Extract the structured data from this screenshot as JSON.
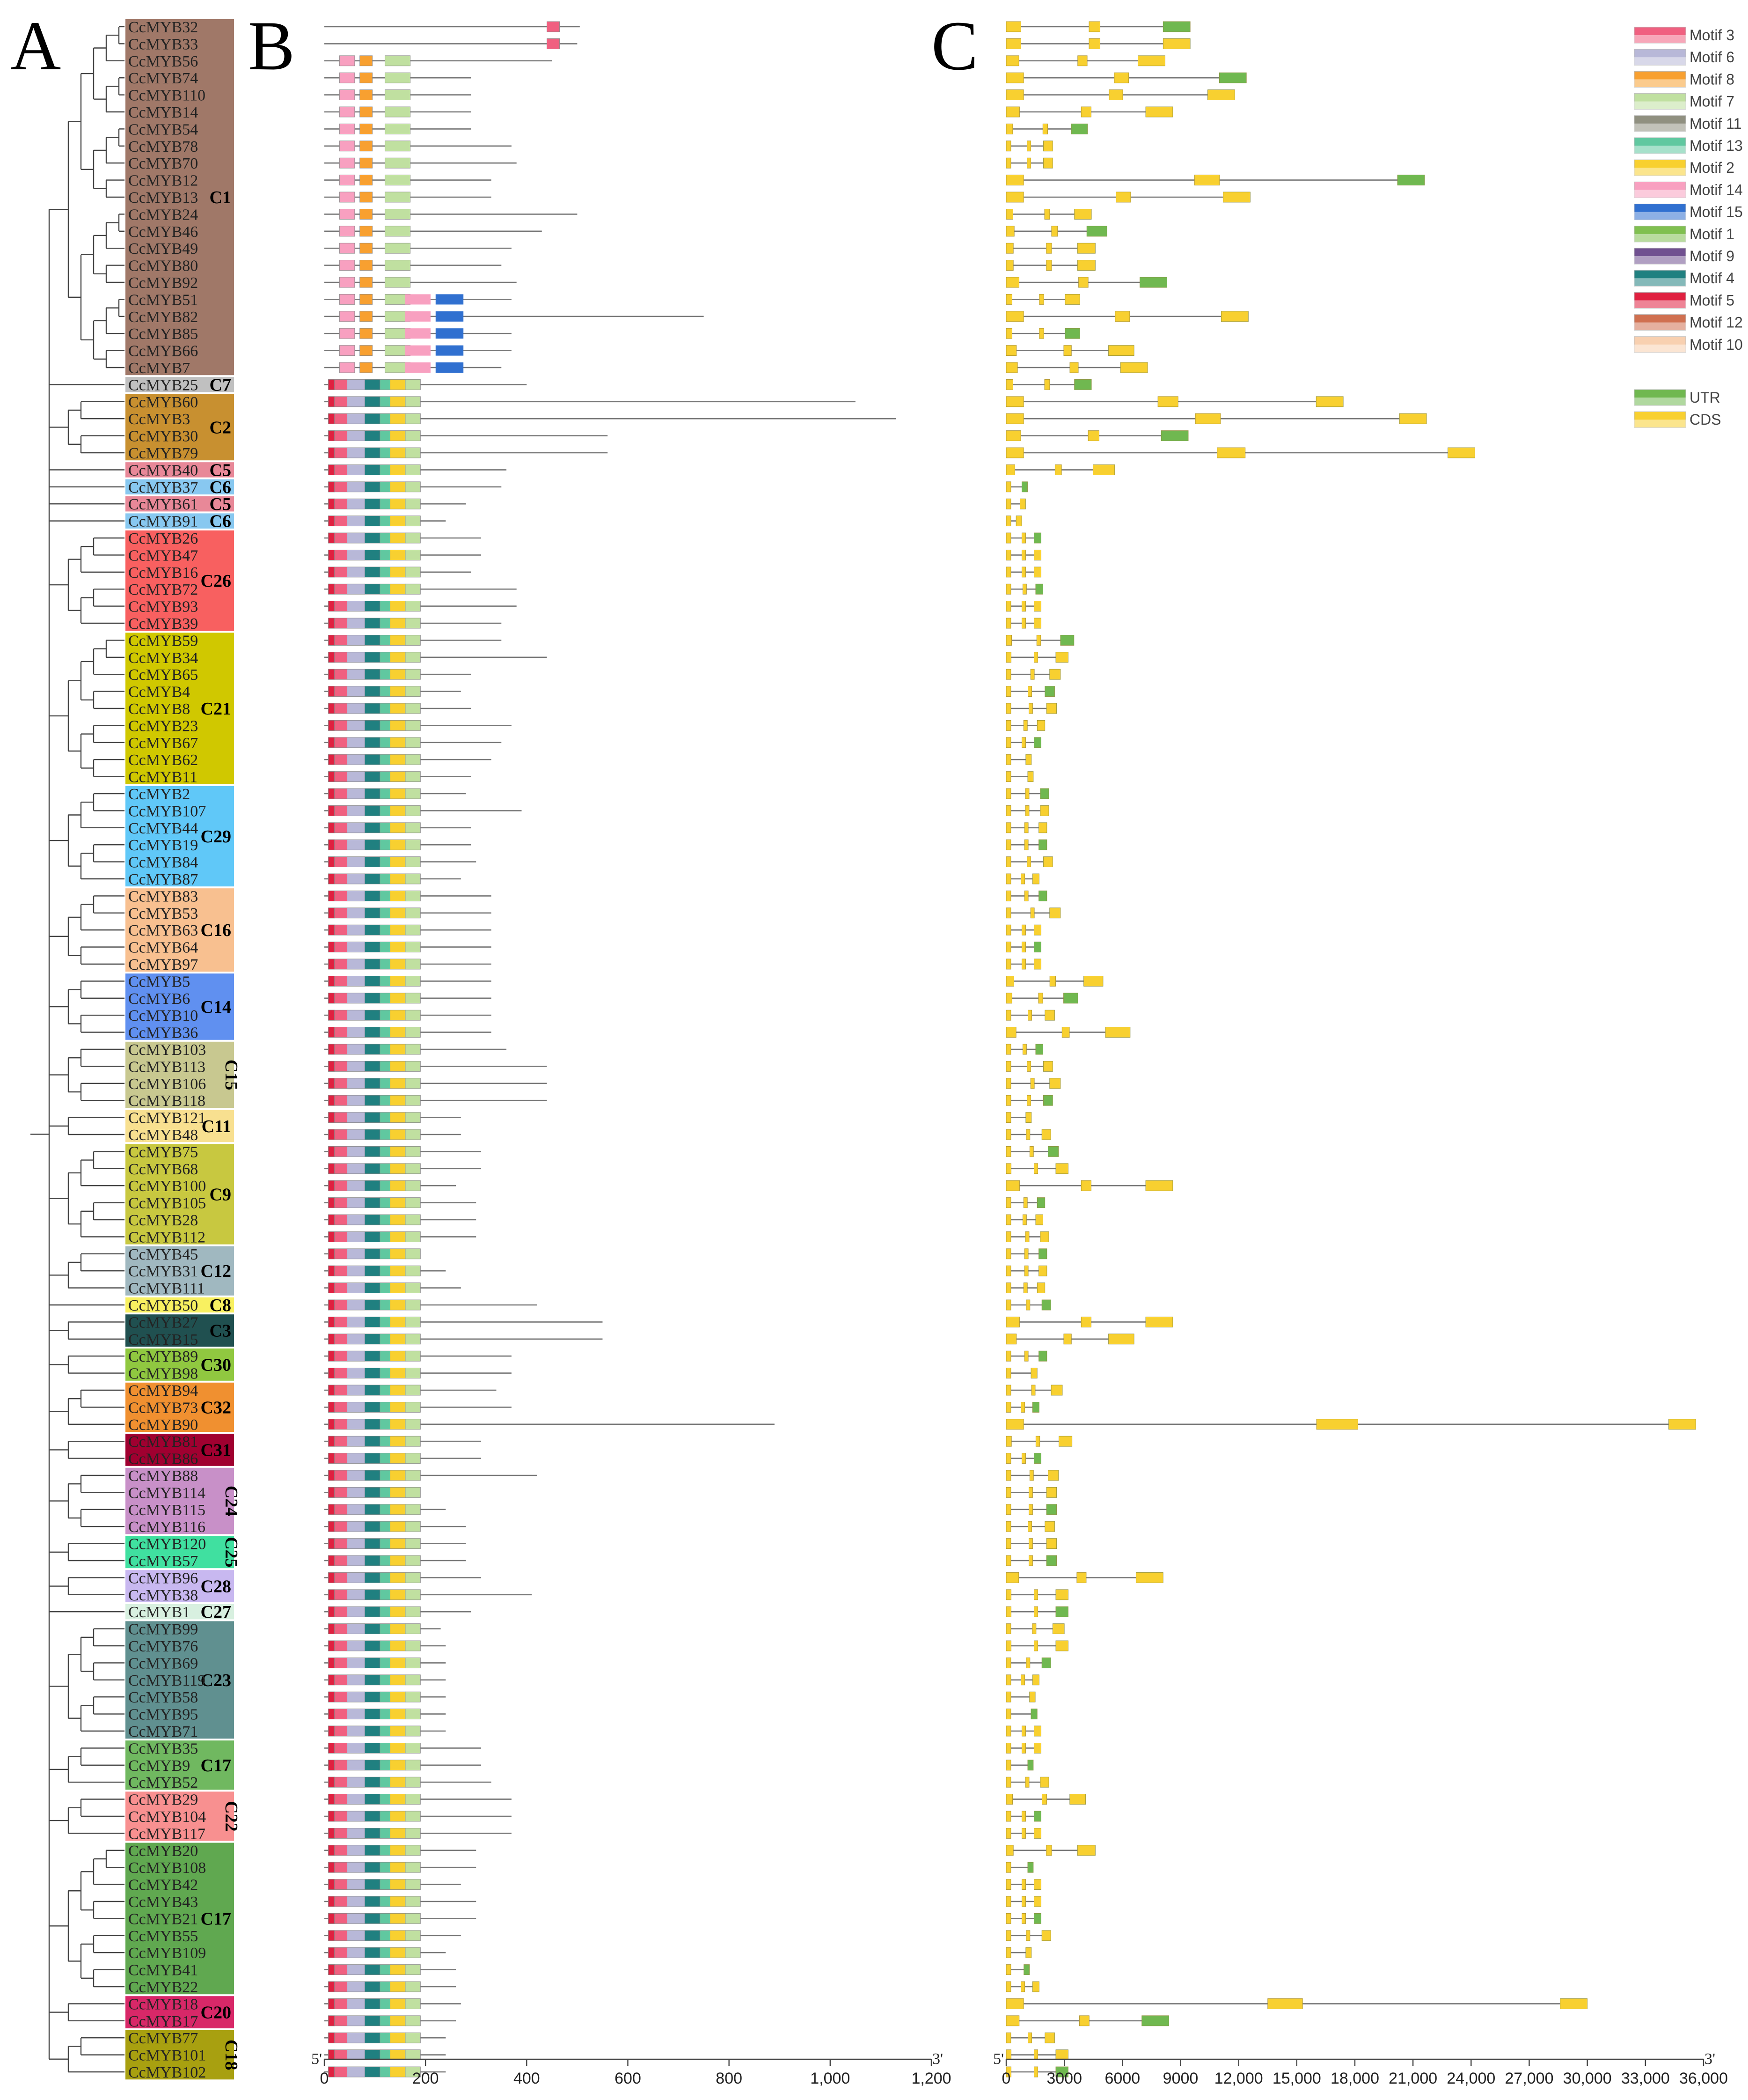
{
  "panels": {
    "a": "A",
    "b": "B",
    "c": "C"
  },
  "genes": [
    "CcMYB32",
    "CcMYB33",
    "CcMYB56",
    "CcMYB74",
    "CcMYB110",
    "CcMYB14",
    "CcMYB54",
    "CcMYB78",
    "CcMYB70",
    "CcMYB12",
    "CcMYB13",
    "CcMYB24",
    "CcMYB46",
    "CcMYB49",
    "CcMYB80",
    "CcMYB92",
    "CcMYB51",
    "CcMYB82",
    "CcMYB85",
    "CcMYB66",
    "CcMYB7",
    "CcMYB25",
    "CcMYB60",
    "CcMYB3",
    "CcMYB30",
    "CcMYB79",
    "CcMYB40",
    "CcMYB37",
    "CcMYB61",
    "CcMYB91",
    "CcMYB26",
    "CcMYB47",
    "CcMYB16",
    "CcMYB72",
    "CcMYB93",
    "CcMYB39",
    "CcMYB59",
    "CcMYB34",
    "CcMYB65",
    "CcMYB4",
    "CcMYB8",
    "CcMYB23",
    "CcMYB67",
    "CcMYB62",
    "CcMYB11",
    "CcMYB2",
    "CcMYB107",
    "CcMYB44",
    "CcMYB19",
    "CcMYB84",
    "CcMYB87",
    "CcMYB83",
    "CcMYB53",
    "CcMYB63",
    "CcMYB64",
    "CcMYB97",
    "CcMYB5",
    "CcMYB6",
    "CcMYB10",
    "CcMYB36",
    "CcMYB103",
    "CcMYB113",
    "CcMYB106",
    "CcMYB118",
    "CcMYB121",
    "CcMYB48",
    "CcMYB75",
    "CcMYB68",
    "CcMYB100",
    "CcMYB105",
    "CcMYB28",
    "CcMYB112",
    "CcMYB45",
    "CcMYB31",
    "CcMYB111",
    "CcMYB50",
    "CcMYB27",
    "CcMYB15",
    "CcMYB89",
    "CcMYB98",
    "CcMYB94",
    "CcMYB73",
    "CcMYB90",
    "CcMYB81",
    "CcMYB86",
    "CcMYB88",
    "CcMYB114",
    "CcMYB115",
    "CcMYB116",
    "CcMYB120",
    "CcMYB57",
    "CcMYB96",
    "CcMYB38",
    "CcMYB1",
    "CcMYB99",
    "CcMYB76",
    "CcMYB69",
    "CcMYB119",
    "CcMYB58",
    "CcMYB95",
    "CcMYB71",
    "CcMYB35",
    "CcMYB9",
    "CcMYB52",
    "CcMYB29",
    "CcMYB104",
    "CcMYB117",
    "CcMYB20",
    "CcMYB108",
    "CcMYB42",
    "CcMYB43",
    "CcMYB21",
    "CcMYB55",
    "CcMYB109",
    "CcMYB41",
    "CcMYB22",
    "CcMYB18",
    "CcMYB17",
    "CcMYB77",
    "CcMYB101",
    "CcMYB102"
  ],
  "clades": [
    {
      "label": "C1",
      "start": 0,
      "end": 20,
      "color": "#a07868",
      "vertical": false
    },
    {
      "label": "C7",
      "start": 21,
      "end": 21,
      "color": "#c0c0c0",
      "vertical": false
    },
    {
      "label": "C2",
      "start": 22,
      "end": 25,
      "color": "#c89030",
      "vertical": false
    },
    {
      "label": "C5",
      "start": 26,
      "end": 26,
      "color": "#e88898",
      "vertical": false
    },
    {
      "label": "C6",
      "start": 27,
      "end": 27,
      "color": "#88c8f0",
      "vertical": false
    },
    {
      "label": "C5",
      "start": 28,
      "end": 28,
      "color": "#e88898",
      "vertical": false
    },
    {
      "label": "C6",
      "start": 29,
      "end": 29,
      "color": "#88c8f0",
      "vertical": false
    },
    {
      "label": "C26",
      "start": 30,
      "end": 35,
      "color": "#f86060",
      "vertical": false
    },
    {
      "label": "C21",
      "start": 36,
      "end": 44,
      "color": "#d0c800",
      "vertical": false
    },
    {
      "label": "C29",
      "start": 45,
      "end": 50,
      "color": "#60c8f8",
      "vertical": false
    },
    {
      "label": "C16",
      "start": 51,
      "end": 55,
      "color": "#f8c090",
      "vertical": false
    },
    {
      "label": "C14",
      "start": 56,
      "end": 59,
      "color": "#6090f0",
      "vertical": false
    },
    {
      "label": "C15",
      "start": 60,
      "end": 63,
      "color": "#c8c890",
      "vertical": true
    },
    {
      "label": "C11",
      "start": 64,
      "end": 65,
      "color": "#f8e090",
      "vertical": false
    },
    {
      "label": "C9",
      "start": 66,
      "end": 71,
      "color": "#c8c840",
      "vertical": false
    },
    {
      "label": "C12",
      "start": 72,
      "end": 74,
      "color": "#a0b8c0",
      "vertical": false
    },
    {
      "label": "C8",
      "start": 75,
      "end": 75,
      "color": "#f8f060",
      "vertical": false
    },
    {
      "label": "C3",
      "start": 76,
      "end": 77,
      "color": "#205050",
      "vertical": false
    },
    {
      "label": "C30",
      "start": 78,
      "end": 79,
      "color": "#90c840",
      "vertical": false
    },
    {
      "label": "C32",
      "start": 80,
      "end": 82,
      "color": "#f09030",
      "vertical": false
    },
    {
      "label": "C31",
      "start": 83,
      "end": 84,
      "color": "#a00030",
      "vertical": false
    },
    {
      "label": "C24",
      "start": 85,
      "end": 88,
      "color": "#c890c8",
      "vertical": true
    },
    {
      "label": "C25",
      "start": 89,
      "end": 90,
      "color": "#40e0a0",
      "vertical": true
    },
    {
      "label": "C28",
      "start": 91,
      "end": 92,
      "color": "#c8b8f0",
      "vertical": false
    },
    {
      "label": "C27",
      "start": 93,
      "end": 93,
      "color": "#d8f0e0",
      "vertical": false
    },
    {
      "label": "C23",
      "start": 94,
      "end": 100,
      "color": "#609090",
      "vertical": false
    },
    {
      "label": "C17",
      "start": 101,
      "end": 103,
      "color": "#70b860",
      "vertical": false
    },
    {
      "label": "C22",
      "start": 104,
      "end": 106,
      "color": "#f89090",
      "vertical": true
    },
    {
      "label": "C17",
      "start": 107,
      "end": 115,
      "color": "#60a850",
      "vertical": false
    },
    {
      "label": "C20",
      "start": 116,
      "end": 117,
      "color": "#d82868",
      "vertical": false
    },
    {
      "label": "C18",
      "start": 118,
      "end": 120,
      "color": "#a8a010",
      "vertical": true
    }
  ],
  "panel_b": {
    "start_label": "5'",
    "end_label": "3'",
    "ticks": [
      "0",
      "200",
      "400",
      "600",
      "800",
      "1,000",
      "1,200"
    ],
    "max": 1200
  },
  "panel_c": {
    "start_label": "5'",
    "end_label": "3'",
    "ticks": [
      "0",
      "3000",
      "6000",
      "9000",
      "12,000",
      "15,000",
      "18,000",
      "21,000",
      "24,000",
      "27,000",
      "30,000",
      "33,000",
      "36,000"
    ],
    "max": 36000
  },
  "legend_motifs": [
    {
      "label": "Motif 3",
      "color": "#f06080"
    },
    {
      "label": "Motif 6",
      "color": "#b8b8d8"
    },
    {
      "label": "Motif 8",
      "color": "#f8a030"
    },
    {
      "label": "Motif 7",
      "color": "#c0e0a0"
    },
    {
      "label": "Motif 11",
      "color": "#909080"
    },
    {
      "label": "Motif 13",
      "color": "#60c8a0"
    },
    {
      "label": "Motif 2",
      "color": "#f8d030"
    },
    {
      "label": "Motif 14",
      "color": "#f8a0c0"
    },
    {
      "label": "Motif 15",
      "color": "#3070d0"
    },
    {
      "label": "Motif 1",
      "color": "#80c050"
    },
    {
      "label": "Motif 9",
      "color": "#705090"
    },
    {
      "label": "Motif 4",
      "color": "#208080"
    },
    {
      "label": "Motif 5",
      "color": "#e02040"
    },
    {
      "label": "Motif 12",
      "color": "#d07050"
    },
    {
      "label": "Motif 10",
      "color": "#f8d0b0"
    }
  ],
  "legend_structure": [
    {
      "label": "UTR",
      "color": "#70b850"
    },
    {
      "label": "CDS",
      "color": "#f8d030"
    }
  ],
  "protein_lengths": [
    505,
    500,
    450,
    290,
    290,
    290,
    290,
    370,
    380,
    330,
    330,
    500,
    430,
    370,
    350,
    380,
    370,
    750,
    370,
    370,
    350,
    400,
    1050,
    1130,
    560,
    560,
    360,
    350,
    280,
    240,
    310,
    310,
    290,
    380,
    380,
    350,
    350,
    440,
    290,
    270,
    290,
    370,
    350,
    330,
    290,
    280,
    390,
    290,
    290,
    300,
    270,
    330,
    330,
    330,
    330,
    330,
    330,
    330,
    330,
    330,
    360,
    440,
    440,
    440,
    270,
    270,
    310,
    310,
    260,
    300,
    300,
    300,
    130,
    240,
    270,
    420,
    550,
    550,
    370,
    370,
    340,
    370,
    890,
    310,
    310,
    420,
    140,
    240,
    280,
    280,
    280,
    310,
    410,
    290,
    230,
    240,
    240,
    240,
    240,
    240,
    240,
    310,
    310,
    330,
    370,
    370,
    370,
    300,
    300,
    270,
    300,
    300,
    270,
    240,
    260,
    260,
    270,
    260,
    240,
    240,
    240
  ],
  "gene_lengths": [
    9500,
    9500,
    8200,
    12400,
    11800,
    8600,
    4200,
    2400,
    2400,
    21600,
    12600,
    4400,
    5200,
    4600,
    4600,
    8300,
    3800,
    12500,
    3800,
    6600,
    7300,
    4400,
    17400,
    21700,
    9400,
    24200,
    5600,
    1100,
    1000,
    800,
    1800,
    1800,
    1800,
    1900,
    1800,
    1800,
    3500,
    3200,
    2800,
    2500,
    2600,
    2000,
    1800,
    1300,
    1400,
    2200,
    2200,
    2100,
    2100,
    2400,
    1700,
    2100,
    2800,
    1800,
    1800,
    1800,
    5000,
    3700,
    2500,
    6400,
    1900,
    2400,
    2800,
    2400,
    1300,
    2300,
    2700,
    3200,
    8600,
    2000,
    1900,
    2200,
    2100,
    2100,
    2000,
    2300,
    8600,
    6600,
    2100,
    1600,
    2900,
    1700,
    35600,
    3400,
    1800,
    2700,
    2600,
    2600,
    2500,
    2600,
    2600,
    8100,
    3200,
    3200,
    3000,
    3200,
    2300,
    1700,
    1500,
    1600,
    1800,
    1800,
    1400,
    2200,
    4100,
    1800,
    1800,
    4600,
    1400,
    1800,
    1800,
    1800,
    2300,
    1300,
    1200,
    1700,
    30000,
    8400,
    2500,
    3200,
    3200
  ]
}
